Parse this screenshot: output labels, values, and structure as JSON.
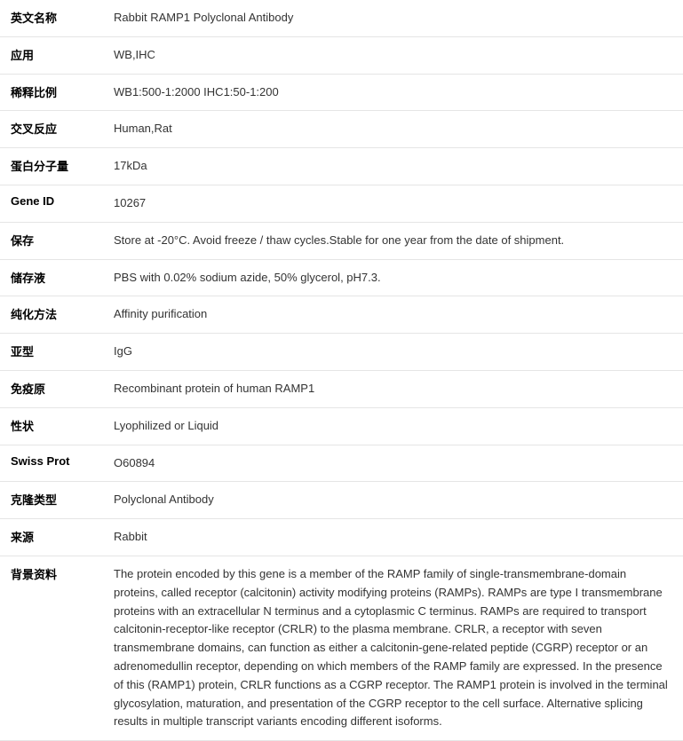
{
  "rows": [
    {
      "label": "英文名称",
      "value": "Rabbit RAMP1 Polyclonal Antibody"
    },
    {
      "label": "应用",
      "value": "WB,IHC"
    },
    {
      "label": "稀释比例",
      "value": "WB1:500-1:2000 IHC1:50-1:200"
    },
    {
      "label": "交叉反应",
      "value": "Human,Rat"
    },
    {
      "label": "蛋白分子量",
      "value": "17kDa"
    },
    {
      "label": "Gene ID",
      "value": "10267"
    },
    {
      "label": "保存",
      "value": "Store at -20°C. Avoid freeze / thaw cycles.Stable for one year from the date of shipment."
    },
    {
      "label": "储存液",
      "value": "PBS with 0.02% sodium azide, 50% glycerol, pH7.3."
    },
    {
      "label": "纯化方法",
      "value": "Affinity purification"
    },
    {
      "label": "亚型",
      "value": "IgG"
    },
    {
      "label": "免疫原",
      "value": "Recombinant protein of human RAMP1"
    },
    {
      "label": "性状",
      "value": "Lyophilized or Liquid"
    },
    {
      "label": "Swiss Prot",
      "value": "O60894"
    },
    {
      "label": "克隆类型",
      "value": "Polyclonal Antibody"
    },
    {
      "label": "来源",
      "value": "Rabbit"
    },
    {
      "label": "背景资料",
      "value": "The protein encoded by this gene is a member of the RAMP family of single-transmembrane-domain proteins, called receptor (calcitonin) activity modifying proteins (RAMPs). RAMPs are type I transmembrane proteins with an extracellular N terminus and a cytoplasmic C terminus. RAMPs are required to transport calcitonin-receptor-like receptor (CRLR) to the plasma membrane. CRLR, a receptor with seven transmembrane domains, can function as either a calcitonin-gene-related peptide (CGRP) receptor or an adrenomedullin receptor, depending on which members of the RAMP family are expressed. In the presence of this (RAMP1) protein, CRLR functions as a CGRP receptor. The RAMP1 protein is involved in the terminal glycosylation, maturation, and presentation of the CGRP receptor to the cell surface. Alternative splicing results in multiple transcript variants encoding different isoforms."
    }
  ]
}
